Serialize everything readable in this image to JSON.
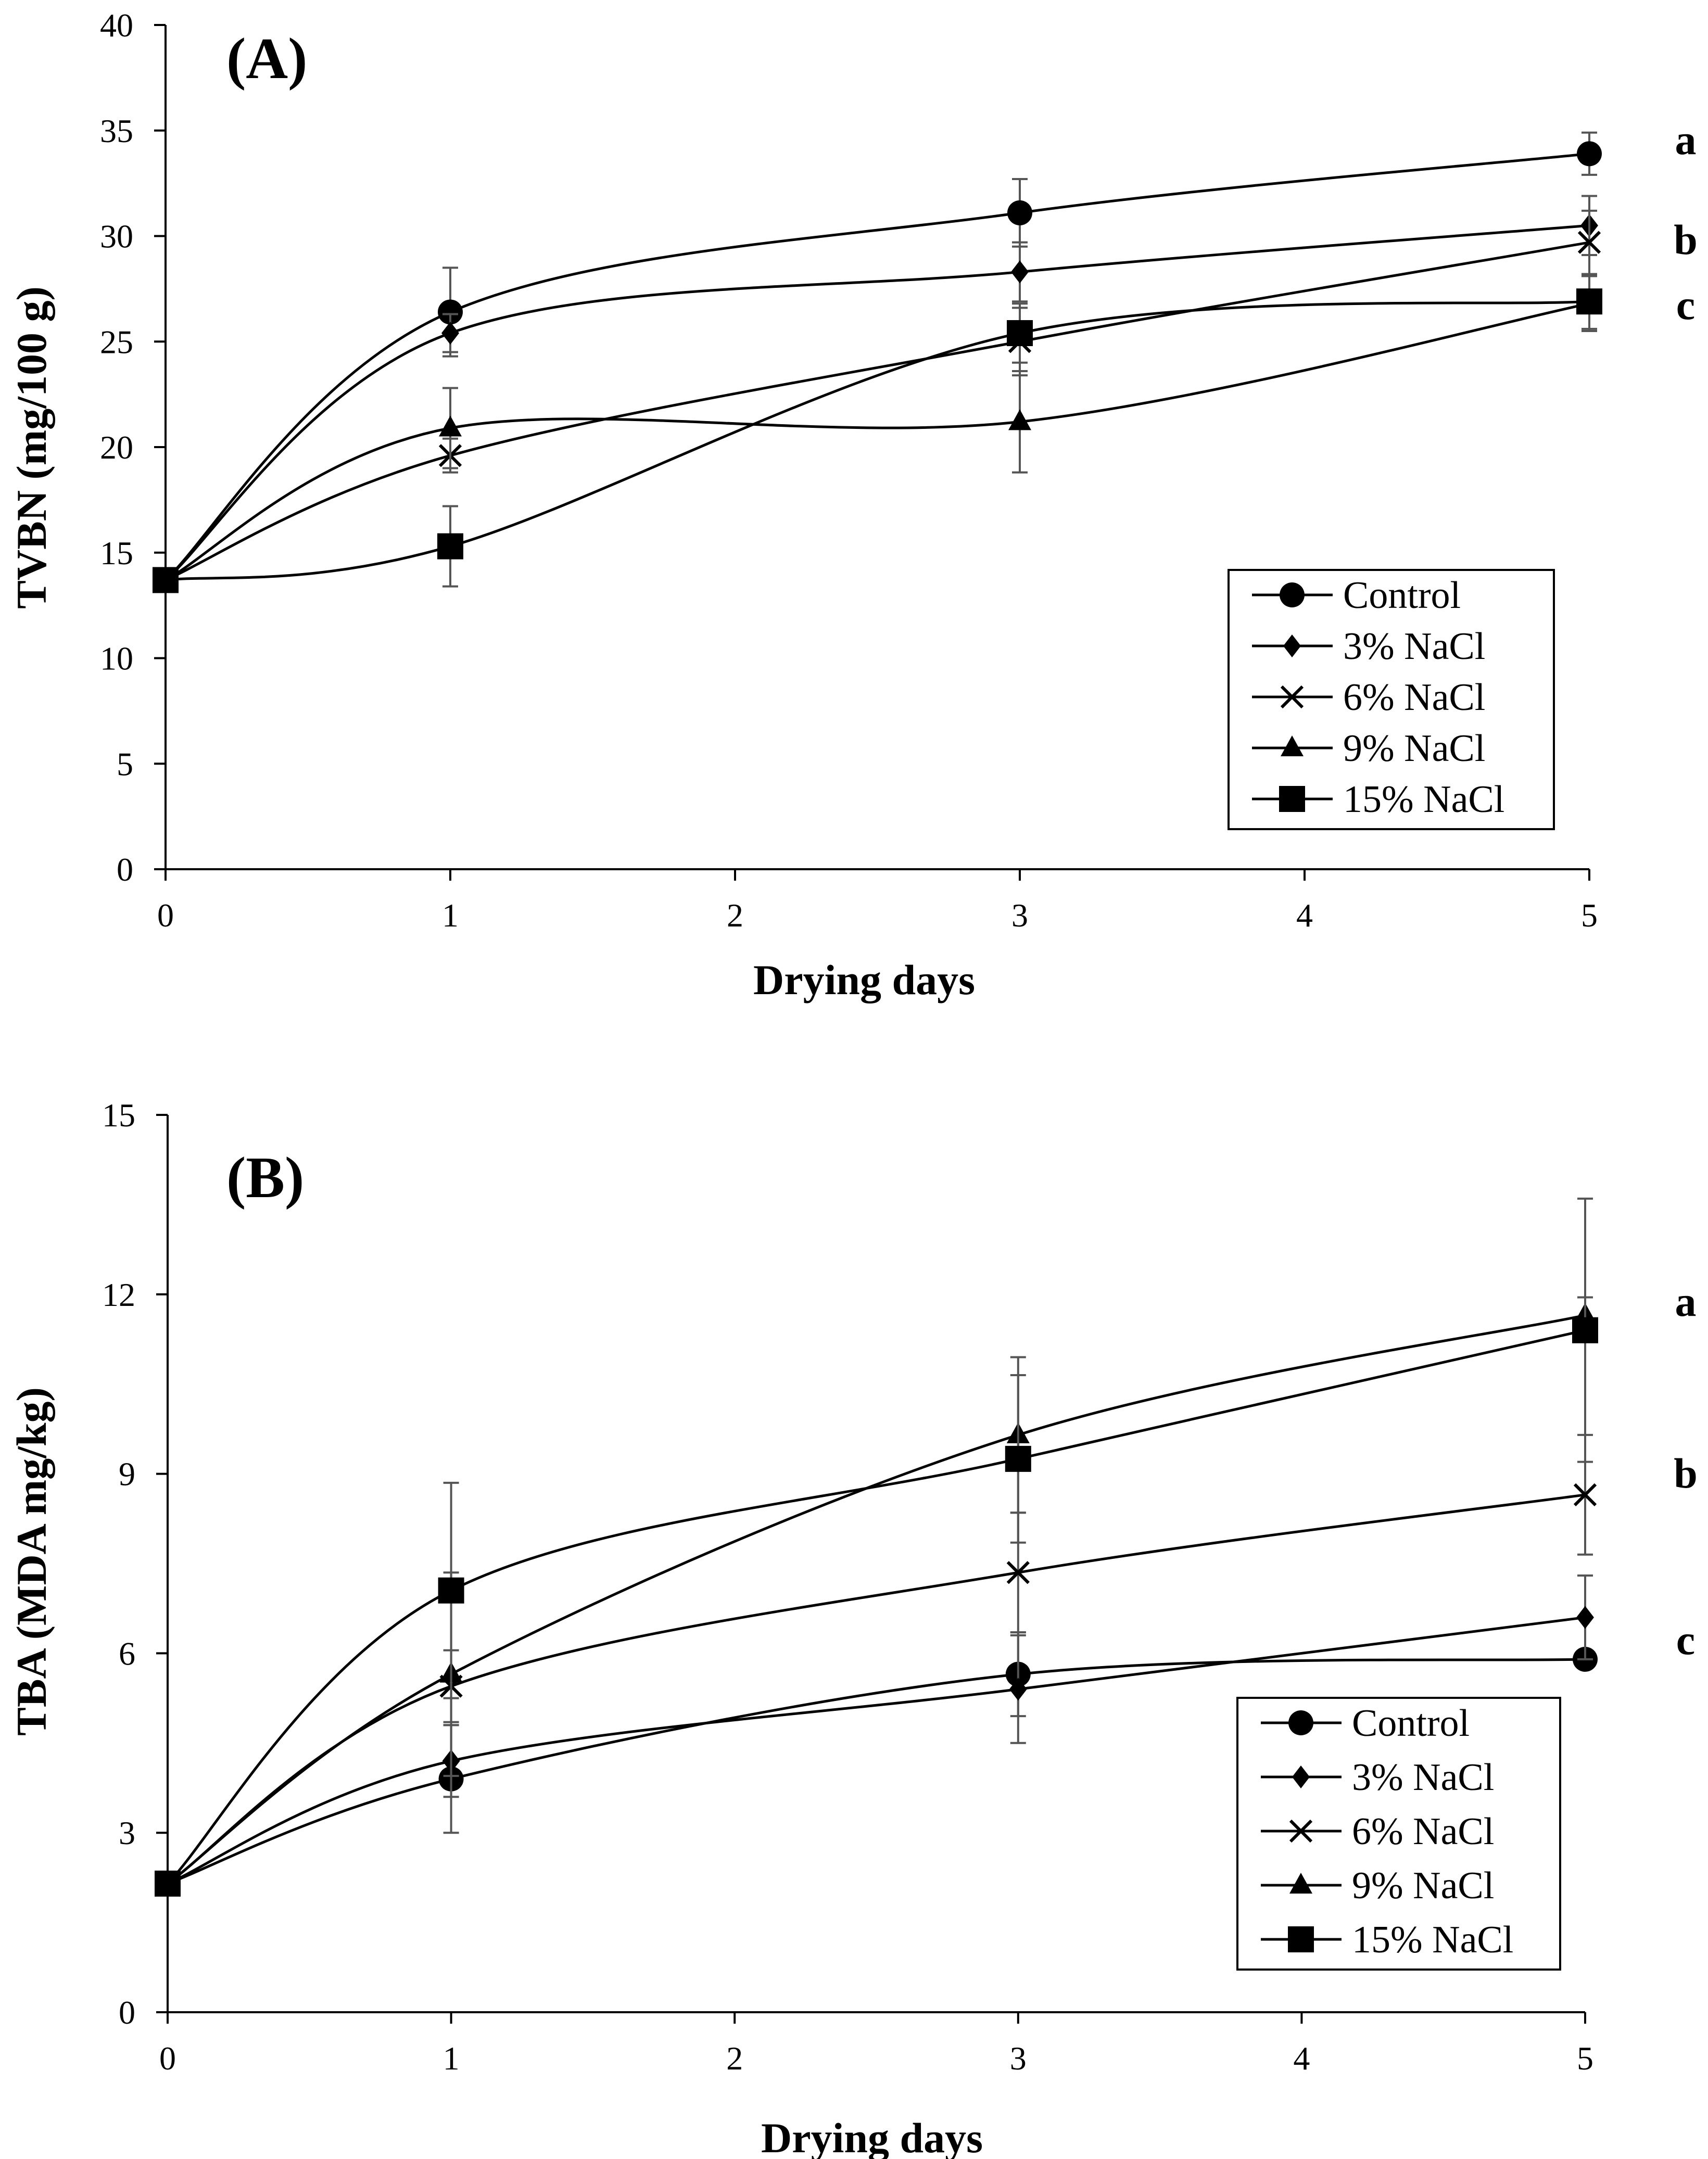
{
  "chart_data": [
    {
      "panel": "(A)",
      "type": "line",
      "xlabel": "Drying days",
      "ylabel": "TVBN (mg/100 g)",
      "xlim": [
        0,
        5
      ],
      "ylim": [
        0,
        40
      ],
      "xticks": [
        0,
        1,
        2,
        3,
        4,
        5
      ],
      "yticks": [
        0,
        5,
        10,
        15,
        20,
        25,
        30,
        35,
        40
      ],
      "x": [
        0,
        1,
        3,
        5
      ],
      "legend_position": "lower-right",
      "series": [
        {
          "name": "Control",
          "marker": "circle",
          "values": [
            13.7,
            26.4,
            31.1,
            33.9
          ],
          "errors": [
            0,
            2.1,
            1.6,
            1.0
          ]
        },
        {
          "name": "3% NaCl",
          "marker": "diamond",
          "values": [
            13.7,
            25.4,
            28.3,
            30.5
          ],
          "errors": [
            0,
            0.9,
            1.4,
            1.4
          ]
        },
        {
          "name": "6% NaCl",
          "marker": "x",
          "values": [
            13.7,
            19.6,
            25.0,
            29.7
          ],
          "errors": [
            0,
            0.8,
            1.6,
            1.5
          ]
        },
        {
          "name": "9% NaCl",
          "marker": "triangle",
          "values": [
            13.7,
            20.9,
            21.2,
            26.8
          ],
          "errors": [
            0,
            1.9,
            2.4,
            1.3
          ]
        },
        {
          "name": "15% NaCl",
          "marker": "square",
          "values": [
            13.7,
            15.3,
            25.4,
            26.9
          ],
          "errors": [
            0,
            1.9,
            1.4,
            1.3
          ]
        }
      ],
      "group_labels": [
        "a",
        "b",
        "c"
      ]
    },
    {
      "panel": "(B)",
      "type": "line",
      "xlabel": "Drying days",
      "ylabel": "TBA (MDA mg/kg)",
      "xlim": [
        0,
        5
      ],
      "ylim": [
        0,
        15
      ],
      "xticks": [
        0,
        1,
        2,
        3,
        4,
        5
      ],
      "yticks": [
        0,
        3,
        6,
        9,
        12,
        15
      ],
      "x": [
        0,
        1,
        3,
        5
      ],
      "legend_position": "lower-right",
      "series": [
        {
          "name": "Control",
          "marker": "circle",
          "values": [
            2.15,
            3.9,
            5.65,
            5.9
          ],
          "errors": [
            0,
            0.9,
            0.7,
            0.0
          ]
        },
        {
          "name": "3% NaCl",
          "marker": "diamond",
          "values": [
            2.15,
            4.2,
            5.4,
            6.6
          ],
          "errors": [
            0,
            0.6,
            0.9,
            0.7
          ]
        },
        {
          "name": "6% NaCl",
          "marker": "x",
          "values": [
            2.15,
            5.45,
            7.35,
            8.65
          ],
          "errors": [
            0,
            0.6,
            1.0,
            1.0
          ]
        },
        {
          "name": "9% NaCl",
          "marker": "triangle",
          "values": [
            2.15,
            5.65,
            9.65,
            11.65
          ],
          "errors": [
            0,
            1.7,
            1.3,
            0.3
          ]
        },
        {
          "name": "15% NaCl",
          "marker": "square",
          "values": [
            2.15,
            7.05,
            9.25,
            11.4
          ],
          "errors": [
            0,
            1.8,
            1.4,
            2.2
          ]
        }
      ],
      "group_labels": [
        "a",
        "b",
        "c"
      ]
    }
  ]
}
